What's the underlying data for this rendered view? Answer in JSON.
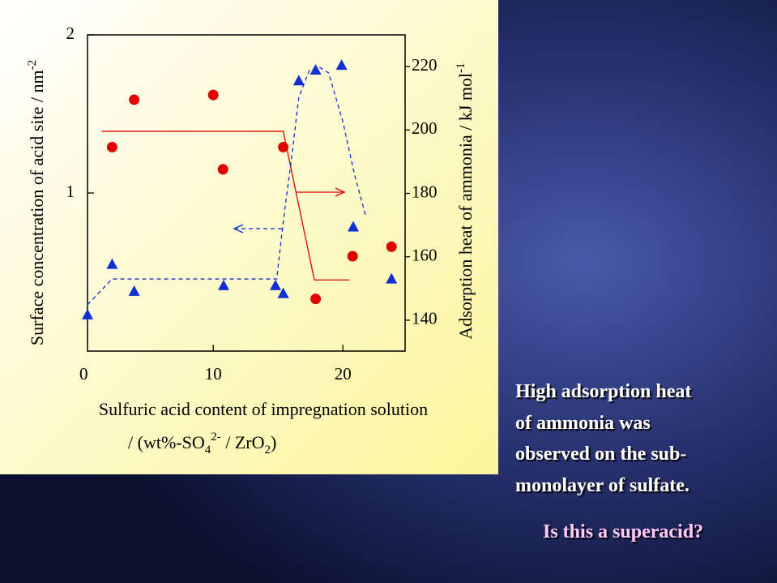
{
  "chart_data": {
    "type": "scatter",
    "xlim": [
      0.3,
      24.8
    ],
    "xticks": [
      0,
      10,
      20
    ],
    "ylim": [
      0,
      2
    ],
    "yticks": [
      1,
      2
    ],
    "y2lim": [
      130.25,
      230
    ],
    "y2ticks": [
      140,
      160,
      180,
      200,
      220
    ],
    "y_label": [
      "Surface concentration of acid site / nm",
      "-2"
    ],
    "y2_label": [
      "Adsorption heat of ammonia / kJ mol",
      "-1"
    ],
    "x_label": [
      "Sulfuric acid content of impregnation solution"
    ],
    "x_label_2": [
      "/ (wt%-SO",
      "4",
      "2-",
      " / ZrO",
      "2",
      ")"
    ],
    "series": [
      {
        "marker": "circle",
        "color": "#e00000",
        "axis": "y",
        "x": [
          2.2,
          3.9,
          10,
          10.75,
          15.4,
          17.9,
          20.75,
          23.75
        ],
        "values": [
          1.29,
          1.59,
          1.62,
          1.15,
          1.29,
          0.33,
          0.6,
          0.66
        ]
      },
      {
        "marker": "triangle",
        "color": "#1030d0",
        "axis": "y2",
        "x": [
          0.3,
          2.2,
          3.9,
          10.8,
          14.8,
          15.4,
          16.6,
          17.9,
          19.9,
          20.8,
          23.75
        ],
        "values": [
          141.8,
          157.7,
          149.2,
          151,
          151,
          148.5,
          215.6,
          219,
          220.5,
          169.5,
          153.1
        ]
      }
    ],
    "lines": [
      {
        "color": "#e00000",
        "dashed": false,
        "axis": "y",
        "x": [
          1.4,
          15.4,
          17.8,
          20.5
        ],
        "values": [
          1.39,
          1.39,
          0.45,
          0.45
        ]
      },
      {
        "color": "#1030d0",
        "dashed": true,
        "axis": "y2",
        "x": [
          0.3,
          2.2,
          14.9,
          15.2,
          15.5,
          16,
          16.6,
          17.4,
          18.1,
          18.9,
          20,
          20.9,
          21.8
        ],
        "values": [
          144.9,
          153,
          153,
          164,
          174.4,
          189.7,
          210.3,
          218.7,
          220,
          218,
          202.6,
          185.9,
          172.3
        ]
      }
    ]
  },
  "slide_text": {
    "lines": [
      "High adsorption heat",
      "of ammonia was",
      "observed on the sub-",
      "monolayer of sulfate."
    ],
    "question": "Is this a superacid?"
  }
}
